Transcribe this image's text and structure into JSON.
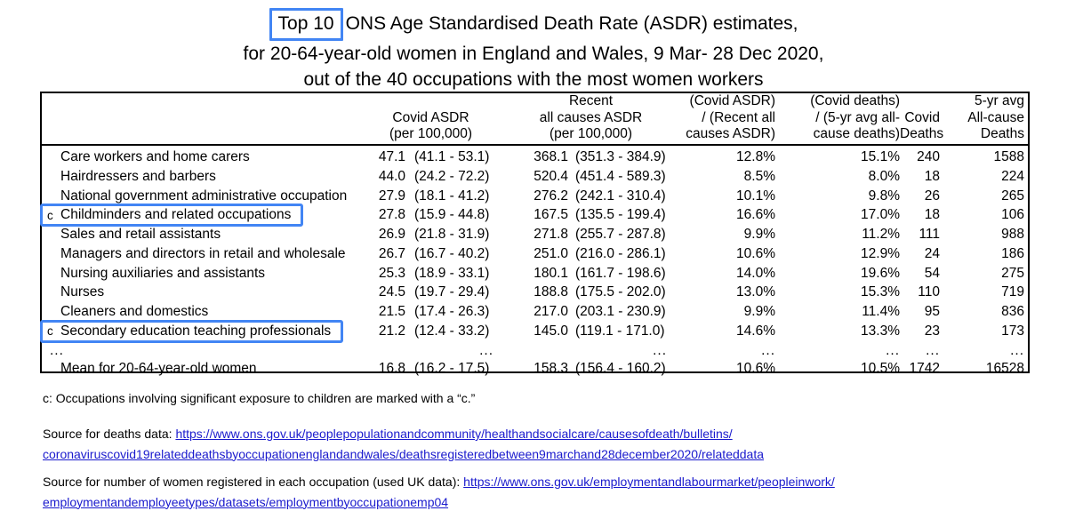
{
  "title": {
    "highlight": "Top 10",
    "line1_rest": "ONS Age Standardised Death Rate (ASDR) estimates,",
    "line2": "for 20-64-year-old women in England and Wales, 9 Mar- 28 Dec 2020,",
    "line3": "out of the 40 occupations with the most women workers"
  },
  "table": {
    "headers": {
      "occupation": "",
      "covid_asdr": [
        "Covid ASDR",
        "(per 100,000)"
      ],
      "recent_asdr": [
        "Recent",
        "all causes ASDR",
        "(per 100,000)"
      ],
      "ratio_asdr": [
        "(Covid ASDR)",
        "/ (Recent all",
        "causes ASDR)"
      ],
      "ratio_deaths": [
        "(Covid deaths)",
        "/ (5-yr avg all-",
        "cause deaths)"
      ],
      "covid_deaths": [
        "Covid",
        "Deaths"
      ],
      "avg_deaths": [
        "5-yr avg",
        "All-cause",
        "Deaths"
      ]
    },
    "rows": [
      {
        "marker": "",
        "occupation": "Care workers and home carers",
        "covid_asdr": "47.1",
        "covid_ci": "(41.1 - 53.1)",
        "recent_asdr": "368.1",
        "recent_ci": "(351.3 - 384.9)",
        "ratio_asdr": "12.8%",
        "ratio_deaths": "15.1%",
        "covid_deaths": "240",
        "avg_deaths": "1588",
        "highlighted": false
      },
      {
        "marker": "",
        "occupation": "Hairdressers and barbers",
        "covid_asdr": "44.0",
        "covid_ci": "(24.2 - 72.2)",
        "recent_asdr": "520.4",
        "recent_ci": "(451.4 - 589.3)",
        "ratio_asdr": "8.5%",
        "ratio_deaths": "8.0%",
        "covid_deaths": "18",
        "avg_deaths": "224",
        "highlighted": false
      },
      {
        "marker": "",
        "occupation": "National government administrative occupation",
        "covid_asdr": "27.9",
        "covid_ci": "(18.1 - 41.2)",
        "recent_asdr": "276.2",
        "recent_ci": "(242.1 - 310.4)",
        "ratio_asdr": "10.1%",
        "ratio_deaths": "9.8%",
        "covid_deaths": "26",
        "avg_deaths": "265",
        "highlighted": false
      },
      {
        "marker": "c",
        "occupation": "Childminders and related occupations",
        "covid_asdr": "27.8",
        "covid_ci": "(15.9 - 44.8)",
        "recent_asdr": "167.5",
        "recent_ci": "(135.5 - 199.4)",
        "ratio_asdr": "16.6%",
        "ratio_deaths": "17.0%",
        "covid_deaths": "18",
        "avg_deaths": "106",
        "highlighted": true
      },
      {
        "marker": "",
        "occupation": "Sales and retail assistants",
        "covid_asdr": "26.9",
        "covid_ci": "(21.8 - 31.9)",
        "recent_asdr": "271.8",
        "recent_ci": "(255.7 - 287.8)",
        "ratio_asdr": "9.9%",
        "ratio_deaths": "11.2%",
        "covid_deaths": "111",
        "avg_deaths": "988",
        "highlighted": false
      },
      {
        "marker": "",
        "occupation": "Managers and directors in retail and wholesale",
        "covid_asdr": "26.7",
        "covid_ci": "(16.7 - 40.2)",
        "recent_asdr": "251.0",
        "recent_ci": "(216.0 - 286.1)",
        "ratio_asdr": "10.6%",
        "ratio_deaths": "12.9%",
        "covid_deaths": "24",
        "avg_deaths": "186",
        "highlighted": false
      },
      {
        "marker": "",
        "occupation": "Nursing auxiliaries and assistants",
        "covid_asdr": "25.3",
        "covid_ci": "(18.9 - 33.1)",
        "recent_asdr": "180.1",
        "recent_ci": "(161.7 - 198.6)",
        "ratio_asdr": "14.0%",
        "ratio_deaths": "19.6%",
        "covid_deaths": "54",
        "avg_deaths": "275",
        "highlighted": false
      },
      {
        "marker": "",
        "occupation": "Nurses",
        "covid_asdr": "24.5",
        "covid_ci": "(19.7 - 29.4)",
        "recent_asdr": "188.8",
        "recent_ci": "(175.5 - 202.0)",
        "ratio_asdr": "13.0%",
        "ratio_deaths": "15.3%",
        "covid_deaths": "110",
        "avg_deaths": "719",
        "highlighted": false
      },
      {
        "marker": "",
        "occupation": "Cleaners and domestics",
        "covid_asdr": "21.5",
        "covid_ci": "(17.4 - 26.3)",
        "recent_asdr": "217.0",
        "recent_ci": "(203.1 - 230.9)",
        "ratio_asdr": "9.9%",
        "ratio_deaths": "11.4%",
        "covid_deaths": "95",
        "avg_deaths": "836",
        "highlighted": false
      },
      {
        "marker": "c",
        "occupation": "Secondary education teaching professionals",
        "covid_asdr": "21.2",
        "covid_ci": "(12.4 - 33.2)",
        "recent_asdr": "145.0",
        "recent_ci": "(119.1 - 171.0)",
        "ratio_asdr": "14.6%",
        "ratio_deaths": "13.3%",
        "covid_deaths": "23",
        "avg_deaths": "173",
        "highlighted": true
      }
    ],
    "dots_row": {
      "marker": "",
      "occupation": "...",
      "covid_asdr": "",
      "covid_ci": "...",
      "recent_asdr": "",
      "recent_ci": "...",
      "ratio_asdr": "...",
      "ratio_deaths": "...",
      "covid_deaths": "...",
      "avg_deaths": "...",
      "highlighted": false
    },
    "mean_row": {
      "marker": "",
      "occupation": "Mean for 20-64-year-old women",
      "covid_asdr": "16.8",
      "covid_ci": "(16.2 - 17.5)",
      "recent_asdr": "158.3",
      "recent_ci": "(156.4 - 160.2)",
      "ratio_asdr": "10.6%",
      "ratio_deaths": "10.5%",
      "covid_deaths": "1742",
      "avg_deaths": "16528",
      "highlighted": false
    }
  },
  "footnote": "c: Occupations involving significant exposure to children are marked with a “c.”",
  "sources": [
    {
      "label": "Source for deaths data: ",
      "url_lines": [
        "https://www.ons.gov.uk/peoplepopulationandcommunity/healthandsocialcare/causesofdeath/bulletins/",
        "coronaviruscovid19relateddeathsbyoccupationenglandandwales/deathsregisteredbetween9marchand28december2020/relateddata"
      ]
    },
    {
      "label": "Source for number of women registered in each occupation (used UK data): ",
      "url_lines": [
        "https://www.ons.gov.uk/employmentandlabourmarket/peopleinwork/",
        "employmentandemployeetypes/datasets/employmentbyoccupationemp04"
      ]
    }
  ],
  "colors": {
    "highlight_box": "#4285f4",
    "link": "#1a1acd",
    "table_border": "#000000"
  }
}
